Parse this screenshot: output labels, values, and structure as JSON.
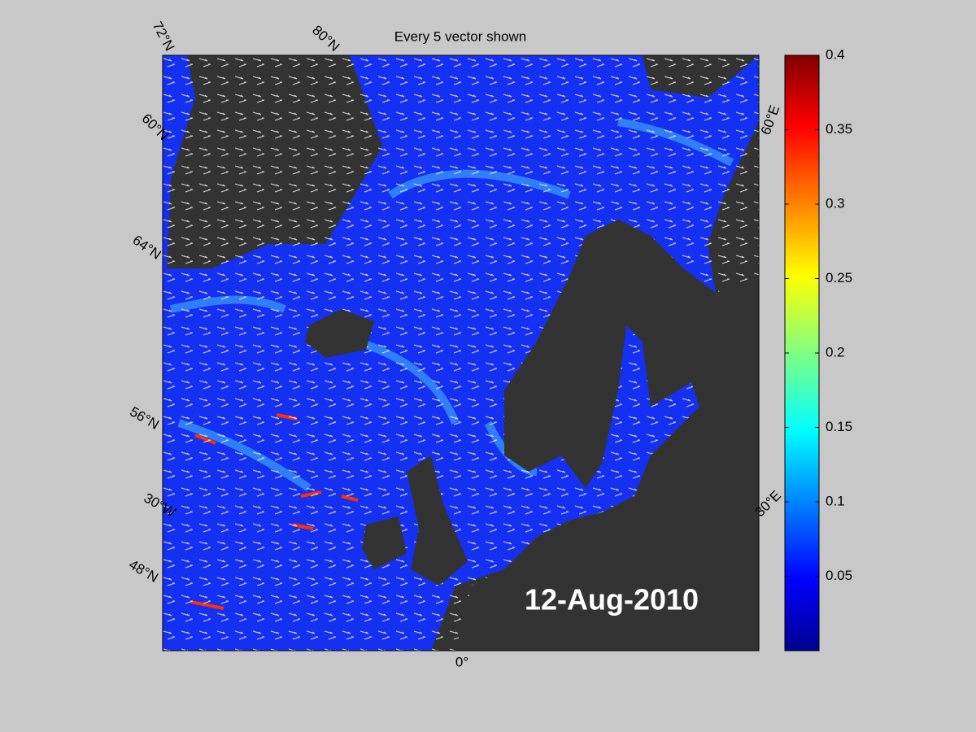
{
  "title": "Every 5 vector shown",
  "date_label": "12-Aug-2010",
  "map_labels": [
    "72°N",
    "80°N",
    "60°N",
    "64°N",
    "56°N",
    "30°W",
    "48°N",
    "0°",
    "30°E",
    "60°E"
  ],
  "colorbar": {
    "lim": [
      0,
      0.4
    ],
    "ticks": [
      0.05,
      0.1,
      0.15,
      0.2,
      0.25,
      0.3,
      0.35,
      0.4
    ]
  }
}
